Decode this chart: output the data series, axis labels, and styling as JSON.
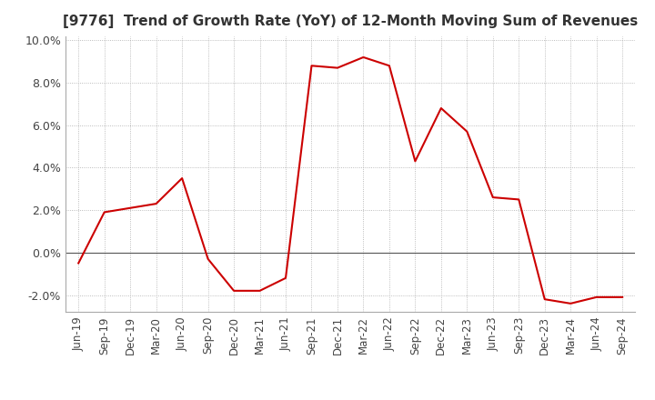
{
  "title": "[9776]  Trend of Growth Rate (YoY) of 12-Month Moving Sum of Revenues",
  "line_color": "#cc0000",
  "background_color": "#ffffff",
  "grid_color": "#aaaaaa",
  "zero_line_color": "#555555",
  "ylim": [
    -0.028,
    0.102
  ],
  "yticks": [
    -0.02,
    0.0,
    0.02,
    0.04,
    0.06,
    0.08,
    0.1
  ],
  "x_labels": [
    "Jun-19",
    "Sep-19",
    "Dec-19",
    "Mar-20",
    "Jun-20",
    "Sep-20",
    "Dec-20",
    "Mar-21",
    "Jun-21",
    "Sep-21",
    "Dec-21",
    "Mar-22",
    "Jun-22",
    "Sep-22",
    "Dec-22",
    "Mar-23",
    "Jun-23",
    "Sep-23",
    "Dec-23",
    "Mar-24",
    "Jun-24",
    "Sep-24"
  ],
  "y_values": [
    -0.005,
    0.019,
    0.021,
    0.023,
    0.035,
    -0.003,
    -0.018,
    -0.018,
    -0.012,
    0.088,
    0.087,
    0.092,
    0.088,
    0.043,
    0.068,
    0.057,
    0.026,
    0.025,
    -0.022,
    -0.024,
    -0.021,
    -0.021
  ],
  "title_fontsize": 11,
  "tick_fontsize": 8.5,
  "ytick_fontsize": 9
}
